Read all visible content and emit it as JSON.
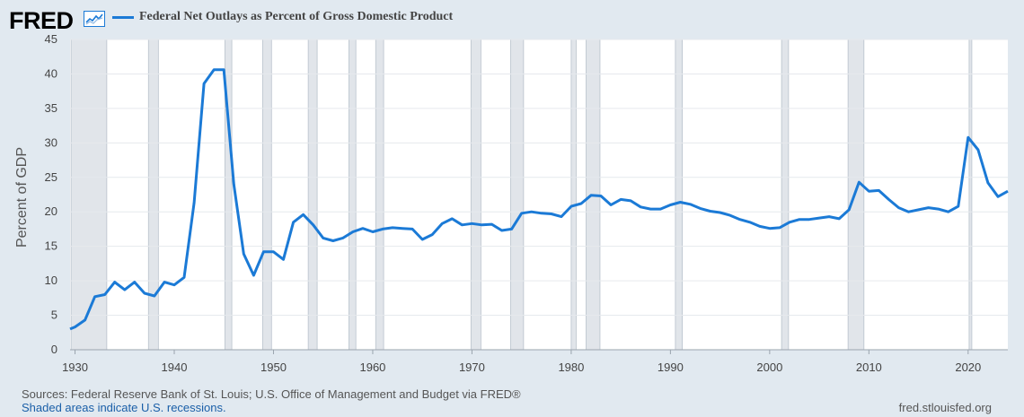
{
  "header": {
    "logo_text": "FRED",
    "logo_icon": "line-chart-icon",
    "series_title": "Federal Net Outlays as Percent of Gross Domestic Product"
  },
  "footer": {
    "sources": "Sources: Federal Reserve Bank of St. Louis; U.S. Office of Management and Budget via FRED®",
    "note": "Shaded areas indicate U.S. recessions.",
    "url": "fred.stlouisfed.org"
  },
  "colors": {
    "line": "#1b7ad6",
    "background": "#e1e9f0",
    "plot_background": "#ffffff",
    "recession": "#e1e5ea"
  },
  "chart_data": {
    "type": "line",
    "title": "Federal Net Outlays as Percent of Gross Domestic Product",
    "xlabel": "",
    "ylabel": "Percent of GDP",
    "xlim": [
      1929.5,
      2024
    ],
    "ylim": [
      0,
      45
    ],
    "grid": true,
    "legend": "top-left",
    "x_ticks": [
      1930,
      1940,
      1950,
      1960,
      1970,
      1980,
      1990,
      2000,
      2010,
      2020
    ],
    "y_ticks": [
      0,
      5,
      10,
      15,
      20,
      25,
      30,
      35,
      40,
      45
    ],
    "recessions": [
      [
        1929.6,
        1933.2
      ],
      [
        1937.4,
        1938.4
      ],
      [
        1945.1,
        1945.8
      ],
      [
        1948.9,
        1949.8
      ],
      [
        1953.5,
        1954.4
      ],
      [
        1957.6,
        1958.3
      ],
      [
        1960.3,
        1961.1
      ],
      [
        1969.9,
        1970.9
      ],
      [
        1973.9,
        1975.2
      ],
      [
        1980.0,
        1980.5
      ],
      [
        1981.5,
        1982.9
      ],
      [
        1990.5,
        1991.2
      ],
      [
        2001.2,
        2001.9
      ],
      [
        2007.9,
        2009.5
      ],
      [
        2020.1,
        2020.3
      ]
    ],
    "series": [
      {
        "name": "Federal Net Outlays as Percent of Gross Domestic Product",
        "x": [
          1929.5,
          1930,
          1931,
          1932,
          1933,
          1934,
          1935,
          1936,
          1937,
          1938,
          1939,
          1940,
          1941,
          1942,
          1943,
          1944,
          1945,
          1946,
          1947,
          1948,
          1949,
          1950,
          1951,
          1952,
          1953,
          1954,
          1955,
          1956,
          1957,
          1958,
          1959,
          1960,
          1961,
          1962,
          1963,
          1964,
          1965,
          1966,
          1967,
          1968,
          1969,
          1970,
          1971,
          1972,
          1973,
          1974,
          1975,
          1976,
          1977,
          1978,
          1979,
          1980,
          1981,
          1982,
          1983,
          1984,
          1985,
          1986,
          1987,
          1988,
          1989,
          1990,
          1991,
          1992,
          1993,
          1994,
          1995,
          1996,
          1997,
          1998,
          1999,
          2000,
          2001,
          2002,
          2003,
          2004,
          2005,
          2006,
          2007,
          2008,
          2009,
          2010,
          2011,
          2012,
          2013,
          2014,
          2015,
          2016,
          2017,
          2018,
          2019,
          2020,
          2021,
          2022,
          2023,
          2024
        ],
        "values": [
          3.0,
          3.3,
          4.3,
          7.7,
          8.0,
          9.8,
          8.7,
          9.8,
          8.2,
          7.8,
          9.8,
          9.4,
          10.5,
          21.3,
          38.6,
          40.6,
          40.6,
          24.0,
          13.9,
          10.8,
          14.2,
          14.2,
          13.1,
          18.5,
          19.6,
          18.1,
          16.2,
          15.8,
          16.2,
          17.1,
          17.6,
          17.1,
          17.5,
          17.7,
          17.6,
          17.5,
          16.0,
          16.7,
          18.3,
          19.0,
          18.1,
          18.3,
          18.1,
          18.2,
          17.3,
          17.5,
          19.8,
          20.0,
          19.8,
          19.7,
          19.3,
          20.8,
          21.2,
          22.4,
          22.3,
          21.0,
          21.8,
          21.6,
          20.7,
          20.4,
          20.4,
          21.0,
          21.4,
          21.1,
          20.5,
          20.1,
          19.9,
          19.5,
          18.9,
          18.5,
          17.9,
          17.6,
          17.7,
          18.5,
          18.9,
          18.9,
          19.1,
          19.3,
          19.0,
          20.3,
          24.3,
          23.0,
          23.1,
          21.8,
          20.6,
          20.0,
          20.3,
          20.6,
          20.4,
          20.0,
          20.8,
          30.8,
          29.0,
          24.2,
          22.2,
          23.0
        ]
      }
    ]
  }
}
